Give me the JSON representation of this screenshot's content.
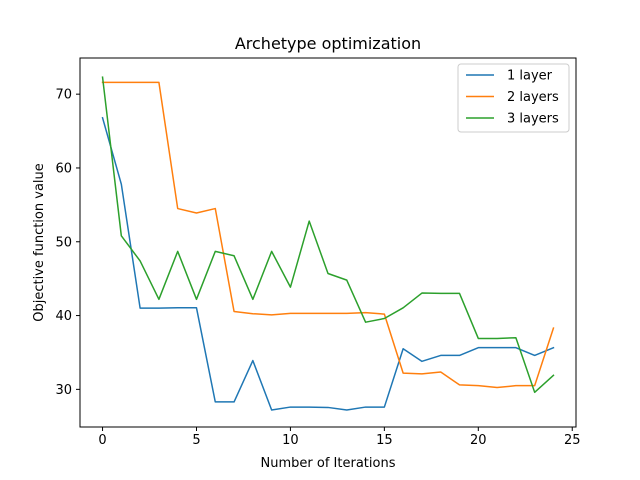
{
  "chart_data": {
    "type": "line",
    "title": "Archetype optimization",
    "xlabel": "Number of Iterations",
    "ylabel": "Objective function value",
    "xlim": [
      -1.2,
      25.2
    ],
    "ylim": [
      24.9,
      74.9
    ],
    "xticks": [
      0,
      5,
      10,
      15,
      20,
      25
    ],
    "yticks": [
      30,
      40,
      50,
      60,
      70
    ],
    "grid": false,
    "legend_position": "top-right",
    "x": [
      0,
      1,
      2,
      3,
      4,
      5,
      6,
      7,
      8,
      9,
      10,
      11,
      12,
      13,
      14,
      15,
      16,
      17,
      18,
      19,
      20,
      21,
      22,
      23,
      24
    ],
    "series": [
      {
        "name": "1 layer",
        "color": "#1f77b4",
        "values": [
          66.8,
          57.8,
          41.0,
          41.0,
          41.05,
          41.05,
          28.3,
          28.3,
          33.9,
          27.2,
          27.6,
          27.6,
          27.55,
          27.2,
          27.6,
          27.6,
          35.5,
          33.8,
          34.6,
          34.6,
          35.65,
          35.65,
          35.65,
          34.6,
          35.65
        ]
      },
      {
        "name": "2 layers",
        "color": "#ff7f0e",
        "values": [
          71.6,
          71.6,
          71.6,
          71.6,
          54.5,
          53.9,
          54.5,
          40.55,
          40.25,
          40.1,
          40.3,
          40.3,
          40.3,
          40.3,
          40.4,
          40.2,
          32.2,
          32.1,
          32.35,
          30.6,
          30.5,
          30.25,
          30.5,
          30.5,
          38.3
        ]
      },
      {
        "name": "3 layers",
        "color": "#2ca02c",
        "values": [
          72.3,
          50.8,
          47.4,
          42.2,
          48.7,
          42.2,
          48.7,
          48.1,
          42.2,
          48.7,
          43.85,
          52.8,
          45.7,
          44.8,
          39.1,
          39.6,
          41.05,
          43.05,
          43.0,
          43.0,
          36.9,
          36.9,
          37.0,
          29.6,
          31.9
        ]
      }
    ]
  }
}
